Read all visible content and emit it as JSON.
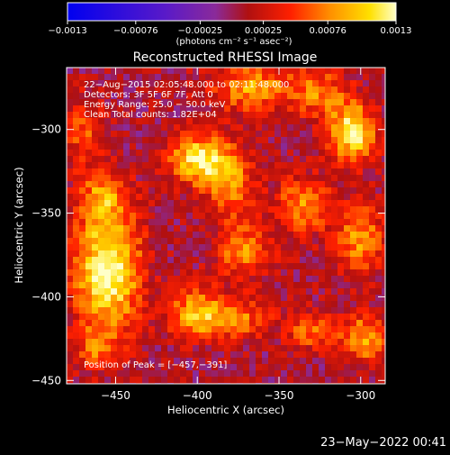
{
  "chart_data": {
    "type": "heatmap",
    "title": "Reconstructed RHESSI Image",
    "xlabel": "Heliocentric X (arcsec)",
    "ylabel": "Heliocentric Y (arcsec)",
    "xlim": [
      -480,
      -285
    ],
    "ylim": [
      -452,
      -263
    ],
    "xticks": [
      -450,
      -400,
      -350,
      -300
    ],
    "xtick_labels": [
      "−450",
      "−400",
      "−350",
      "−300"
    ],
    "yticks": [
      -450,
      -400,
      -350,
      -300
    ],
    "ytick_labels": [
      "−450",
      "−400",
      "−350",
      "−300"
    ],
    "colorbar": {
      "range": [
        -0.0013,
        0.0013
      ],
      "ticks": [
        -0.0013,
        -0.00076,
        -0.00025,
        0.00025,
        0.00076,
        0.0013
      ],
      "tick_labels": [
        "−0.0013",
        "−0.00076",
        "−0.00025",
        "0.00025",
        "0.00076",
        "0.0013"
      ],
      "unit_label": "(photons cm⁻² s⁻¹ asec⁻²)"
    },
    "annotations": [
      "22−Aug−2015 02:05:48.000 to 02:11:48.000",
      "Detectors: 3F 5F 6F 7F, Att 0",
      "Energy Range: 25.0 − 50.0 keV",
      "Clean    Total counts: 1.82E+04"
    ],
    "peak_label": "Position of Peak = [−457,−391]",
    "peak": [
      -457,
      -391
    ],
    "bright_regions": [
      {
        "x": -455,
        "y": -385,
        "sx": 14,
        "sy": 26,
        "amp": 0.00125
      },
      {
        "x": -458,
        "y": -340,
        "sx": 10,
        "sy": 12,
        "amp": 0.0006
      },
      {
        "x": -399,
        "y": -318,
        "sx": 12,
        "sy": 10,
        "amp": 0.00115
      },
      {
        "x": -380,
        "y": -332,
        "sx": 10,
        "sy": 14,
        "amp": 0.0007
      },
      {
        "x": -372,
        "y": -372,
        "sx": 12,
        "sy": 12,
        "amp": 0.00065
      },
      {
        "x": -400,
        "y": -410,
        "sx": 12,
        "sy": 10,
        "amp": 0.00085
      },
      {
        "x": -375,
        "y": -413,
        "sx": 14,
        "sy": 8,
        "amp": 0.0006
      },
      {
        "x": -367,
        "y": -275,
        "sx": 18,
        "sy": 10,
        "amp": 0.00075
      },
      {
        "x": -325,
        "y": -278,
        "sx": 12,
        "sy": 10,
        "amp": 0.0006
      },
      {
        "x": -305,
        "y": -302,
        "sx": 10,
        "sy": 12,
        "amp": 0.00115
      },
      {
        "x": -335,
        "y": -345,
        "sx": 12,
        "sy": 12,
        "amp": 0.0007
      },
      {
        "x": -300,
        "y": -365,
        "sx": 10,
        "sy": 14,
        "amp": 0.00075
      },
      {
        "x": -298,
        "y": -425,
        "sx": 10,
        "sy": 10,
        "amp": 0.0008
      },
      {
        "x": -330,
        "y": -420,
        "sx": 10,
        "sy": 8,
        "amp": 0.0006
      },
      {
        "x": -470,
        "y": -300,
        "sx": 8,
        "sy": 14,
        "amp": 0.0005
      },
      {
        "x": -462,
        "y": -432,
        "sx": 8,
        "sy": 8,
        "amp": 0.0005
      }
    ],
    "grid": false
  },
  "footer": {
    "timestamp": "23−May−2022 00:41"
  }
}
